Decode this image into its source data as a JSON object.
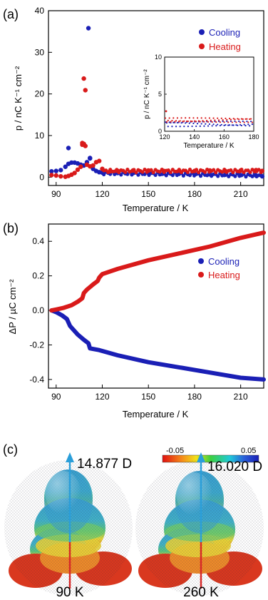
{
  "figure": {
    "panel_labels": [
      "(a)",
      "(b)",
      "(c)"
    ],
    "colors": {
      "cooling": "#1a1fb5",
      "heating": "#d91a1a",
      "dipole_arrow": "#2a9ed9",
      "dipole_base": "#d62828"
    }
  },
  "chart_data": [
    {
      "id": "a",
      "type": "scatter",
      "xlabel": "Temperature / K",
      "ylabel": "p / nC K⁻¹ cm⁻²",
      "xlim": [
        85,
        225
      ],
      "ylim": [
        -2,
        40
      ],
      "xticks": [
        90,
        120,
        150,
        180,
        210
      ],
      "yticks": [
        0,
        10,
        20,
        30,
        40
      ],
      "legend": {
        "position": "top-right",
        "entries": [
          "Cooling",
          "Heating"
        ]
      },
      "series": [
        {
          "name": "Cooling",
          "color": "#1a1fb5",
          "x": [
            87,
            90,
            93,
            96,
            98,
            100,
            102,
            104,
            106,
            108,
            110,
            111,
            112,
            114,
            116,
            118,
            120,
            125,
            130,
            135,
            140,
            150,
            160,
            170,
            180,
            190,
            200,
            210,
            220,
            224
          ],
          "y": [
            1.4,
            1.5,
            1.7,
            2.5,
            3.2,
            3.5,
            3.5,
            3.3,
            3.0,
            2.8,
            3.6,
            35.8,
            4.5,
            2.0,
            1.5,
            1.2,
            1.1,
            1.0,
            1.0,
            1.0,
            1.0,
            1.0,
            0.9,
            0.9,
            0.8,
            0.7,
            0.6,
            0.5,
            0.4,
            0.2
          ]
        },
        {
          "name": "Cooling outliers",
          "color": "#1a1fb5",
          "x": [
            98,
            112
          ],
          "y": [
            7.0,
            4.6
          ]
        },
        {
          "name": "Heating",
          "color": "#d91a1a",
          "x": [
            87,
            90,
            93,
            96,
            98,
            100,
            102,
            104,
            106,
            107,
            108,
            109,
            110,
            112,
            114,
            116,
            118,
            120,
            125,
            130,
            140,
            150,
            160,
            170,
            180,
            190,
            200,
            210,
            220,
            224
          ],
          "y": [
            0.5,
            0.4,
            0.2,
            0.1,
            0.3,
            0.6,
            1.0,
            1.8,
            2.5,
            7.8,
            23.7,
            20.9,
            3.0,
            2.6,
            2.8,
            3.6,
            3.9,
            2.0,
            1.4,
            1.5,
            1.6,
            1.6,
            1.5,
            1.6,
            1.5,
            1.6,
            1.5,
            1.6,
            1.7,
            1.5
          ]
        },
        {
          "name": "Heating outliers",
          "color": "#d91a1a",
          "x": [
            107,
            108,
            109
          ],
          "y": [
            8.2,
            8.0,
            7.5
          ]
        }
      ],
      "inset": {
        "xlabel": "Temperature / K",
        "ylabel": "p / nC K⁻¹ cm⁻²",
        "xlim": [
          120,
          180
        ],
        "ylim": [
          0,
          10
        ],
        "xticks": [
          120,
          140,
          160,
          180
        ],
        "yticks": [
          0,
          5,
          10
        ],
        "series": [
          {
            "name": "Cooling",
            "color": "#1a1fb5",
            "y_mean": 1.0,
            "y_spread": 0.35
          },
          {
            "name": "Heating",
            "color": "#d91a1a",
            "y_mean": 1.5,
            "y_spread": 0.3,
            "first_point": [
              121,
              2.7
            ]
          }
        ]
      }
    },
    {
      "id": "b",
      "type": "line",
      "xlabel": "Temperature / K",
      "ylabel": "ΔP / µC cm⁻²",
      "xlim": [
        85,
        225
      ],
      "ylim": [
        -0.45,
        0.5
      ],
      "xticks": [
        90,
        120,
        150,
        180,
        210
      ],
      "yticks": [
        -0.4,
        -0.2,
        0.0,
        0.2,
        0.4
      ],
      "legend": {
        "position": "right",
        "entries": [
          "Cooling",
          "Heating"
        ]
      },
      "series": [
        {
          "name": "Cooling",
          "color": "#1a1fb5",
          "x": [
            87,
            90,
            94,
            97,
            99,
            100,
            104,
            108,
            111,
            112,
            118,
            130,
            150,
            170,
            190,
            210,
            225
          ],
          "y": [
            0.0,
            -0.01,
            -0.03,
            -0.05,
            -0.09,
            -0.1,
            -0.14,
            -0.17,
            -0.19,
            -0.22,
            -0.23,
            -0.26,
            -0.3,
            -0.33,
            -0.36,
            -0.39,
            -0.4
          ]
        },
        {
          "name": "Heating",
          "color": "#d91a1a",
          "x": [
            87,
            90,
            95,
            100,
            104,
            107,
            108,
            110,
            114,
            117,
            118,
            120,
            130,
            150,
            170,
            190,
            210,
            225
          ],
          "y": [
            0.0,
            0.005,
            0.015,
            0.03,
            0.05,
            0.07,
            0.1,
            0.12,
            0.15,
            0.17,
            0.19,
            0.21,
            0.24,
            0.29,
            0.33,
            0.37,
            0.42,
            0.45
          ]
        }
      ]
    }
  ],
  "panel_c": {
    "colorbar": {
      "min_label": "-0.05",
      "max_label": "0.05"
    },
    "molecules": [
      {
        "dipole_label": "14.877 D",
        "temperature_label": "90 K"
      },
      {
        "dipole_label": "16.020 D",
        "temperature_label": "260 K"
      }
    ]
  }
}
